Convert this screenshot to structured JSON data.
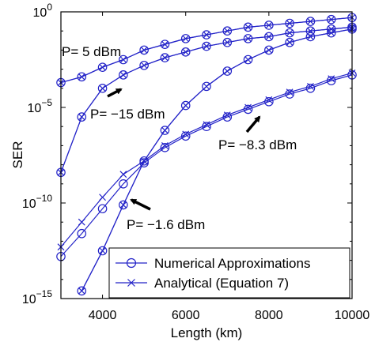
{
  "chart_data": {
    "type": "line",
    "xlabel": "Length (km)",
    "ylabel": "SER",
    "xlim": [
      3000,
      10000
    ],
    "ylim_exponent": [
      -15,
      0
    ],
    "y_scale": "log",
    "grid": false,
    "x_ticks": [
      {
        "value": 4000,
        "label": "4000"
      },
      {
        "value": 6000,
        "label": "6000"
      },
      {
        "value": 8000,
        "label": "8000"
      },
      {
        "value": 10000,
        "label": "10000"
      }
    ],
    "y_ticks": [
      {
        "exp": 0,
        "base": "10",
        "sup": "0"
      },
      {
        "exp": -5,
        "base": "10",
        "sup": "−5"
      },
      {
        "exp": -10,
        "base": "10",
        "sup": "−10"
      },
      {
        "exp": -15,
        "base": "10",
        "sup": "−15"
      }
    ],
    "legend": {
      "placement": "bottom-right",
      "entries": [
        {
          "marker": "circle",
          "label": "Numerical Approximations"
        },
        {
          "marker": "cross",
          "label": "Analytical (Equation 7)"
        }
      ]
    },
    "color": "#2323c8",
    "annotations": [
      {
        "text": "P= 5 dBm",
        "points_to_series": "P=5",
        "arrow": false
      },
      {
        "text": "P= −15 dBm",
        "points_to_series": "P=-15",
        "arrow": true
      },
      {
        "text": "P= −8.3 dBm",
        "points_to_series": "P=-8.3",
        "arrow": true
      },
      {
        "text": "P= −1.6 dBm",
        "points_to_series": "P=-1.6",
        "arrow": true
      }
    ],
    "series": [
      {
        "id": "P=5",
        "x": [
          3000,
          3500,
          4000,
          4500,
          5000,
          5500,
          6000,
          6500,
          7000,
          7500,
          8000,
          8500,
          9000,
          9500,
          10000
        ],
        "log10_ser_numerical": [
          -3.7,
          -3.4,
          -2.9,
          -2.5,
          -2.0,
          -1.7,
          -1.4,
          -1.2,
          -1.0,
          -0.8,
          -0.7,
          -0.6,
          -0.5,
          -0.4,
          -0.3
        ],
        "log10_ser_analytical": [
          -3.7,
          -3.4,
          -2.9,
          -2.5,
          -2.0,
          -1.7,
          -1.4,
          -1.2,
          -1.0,
          -0.8,
          -0.7,
          -0.6,
          -0.5,
          -0.4,
          -0.3
        ]
      },
      {
        "id": "P=-15",
        "x": [
          3000,
          3500,
          4000,
          4500,
          5000,
          5500,
          6000,
          6500,
          7000,
          7500,
          8000,
          8500,
          9000,
          9500,
          10000
        ],
        "log10_ser_numerical": [
          -8.4,
          -5.5,
          -4.0,
          -3.3,
          -2.8,
          -2.4,
          -2.1,
          -1.8,
          -1.6,
          -1.4,
          -1.3,
          -1.1,
          -1.0,
          -0.9,
          -0.8
        ],
        "log10_ser_analytical": [
          -8.4,
          -5.5,
          -4.0,
          -3.3,
          -2.8,
          -2.4,
          -2.1,
          -1.8,
          -1.6,
          -1.4,
          -1.3,
          -1.1,
          -1.0,
          -0.9,
          -0.8
        ]
      },
      {
        "id": "P=-8.3",
        "x": [
          3000,
          3500,
          4000,
          4500,
          5000,
          5500,
          6000,
          6500,
          7000,
          7500,
          8000,
          8500,
          9000,
          9500,
          10000
        ],
        "log10_ser_numerical": [
          -12.8,
          -11.6,
          -10.3,
          -9.0,
          -7.9,
          -7.1,
          -6.5,
          -6.0,
          -5.5,
          -5.1,
          -4.7,
          -4.3,
          -4.0,
          -3.6,
          -3.3
        ],
        "log10_ser_analytical": [
          -12.3,
          -11.0,
          -9.7,
          -8.5,
          -7.8,
          -7.0,
          -6.4,
          -5.9,
          -5.4,
          -5.0,
          -4.6,
          -4.2,
          -3.9,
          -3.5,
          -3.2
        ]
      },
      {
        "id": "P=-1.6",
        "x": [
          3500,
          4000,
          4500,
          5000,
          5500,
          6000,
          6500,
          7000,
          7500,
          8000,
          8500,
          9000,
          9500,
          10000
        ],
        "log10_ser_numerical": [
          -14.6,
          -12.5,
          -10.1,
          -7.8,
          -6.2,
          -4.9,
          -3.9,
          -3.1,
          -2.5,
          -2.0,
          -1.6,
          -1.3,
          -1.1,
          -0.9
        ],
        "log10_ser_analytical": [
          -14.6,
          -12.5,
          -10.1,
          -7.8,
          -6.2,
          -4.9,
          -3.9,
          -3.1,
          -2.5,
          -2.0,
          -1.6,
          -1.3,
          -1.1,
          -0.9
        ]
      }
    ]
  }
}
